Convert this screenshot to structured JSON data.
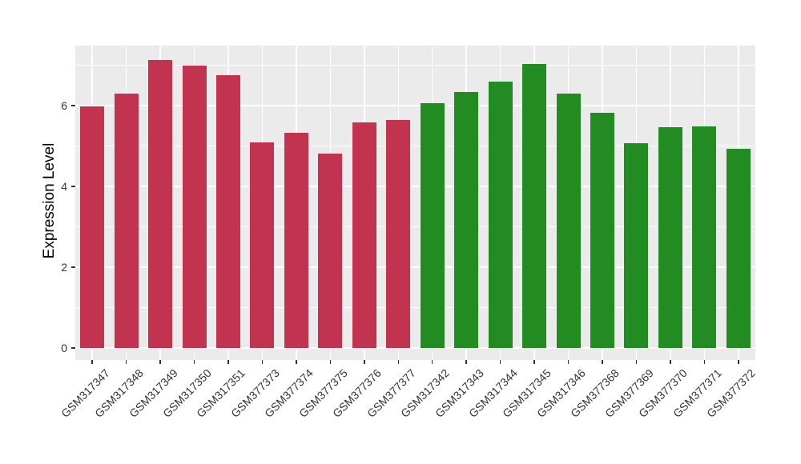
{
  "chart_data": {
    "type": "bar",
    "title": "",
    "xlabel": "",
    "ylabel": "Expression Level",
    "ylim": [
      0,
      7.49
    ],
    "yticks": [
      0,
      2,
      4,
      6
    ],
    "minor_yticks": [
      1,
      3,
      5,
      7
    ],
    "grid": "horizontal major+minor white lines, vertical white lines at category centers",
    "legend_position": "none",
    "panel_style": "ggplot-gray",
    "categories": [
      "GSM317347",
      "GSM317348",
      "GSM317349",
      "GSM317350",
      "GSM317351",
      "GSM377373",
      "GSM377374",
      "GSM377375",
      "GSM377376",
      "GSM377377",
      "GSM317342",
      "GSM317343",
      "GSM317344",
      "GSM317345",
      "GSM317346",
      "GSM377368",
      "GSM377369",
      "GSM377370",
      "GSM377371",
      "GSM377372"
    ],
    "values": [
      5.98,
      6.29,
      7.13,
      7.0,
      6.76,
      5.08,
      5.32,
      4.81,
      5.58,
      5.65,
      6.05,
      6.33,
      6.59,
      7.02,
      6.29,
      5.82,
      5.06,
      5.47,
      5.49,
      4.94
    ],
    "bar_colors": [
      "#C23350",
      "#C23350",
      "#C23350",
      "#C23350",
      "#C23350",
      "#C23350",
      "#C23350",
      "#C23350",
      "#C23350",
      "#C23350",
      "#228B22",
      "#228B22",
      "#228B22",
      "#228B22",
      "#228B22",
      "#228B22",
      "#228B22",
      "#228B22",
      "#228B22",
      "#228B22"
    ],
    "colors": {
      "group_red": "#C23350",
      "group_green": "#228B22",
      "panel_background": "#EBEBEB",
      "gridline": "#FFFFFF",
      "tick_mark": "#333333",
      "axis_text": "#333333",
      "axis_title": "#000000"
    }
  }
}
